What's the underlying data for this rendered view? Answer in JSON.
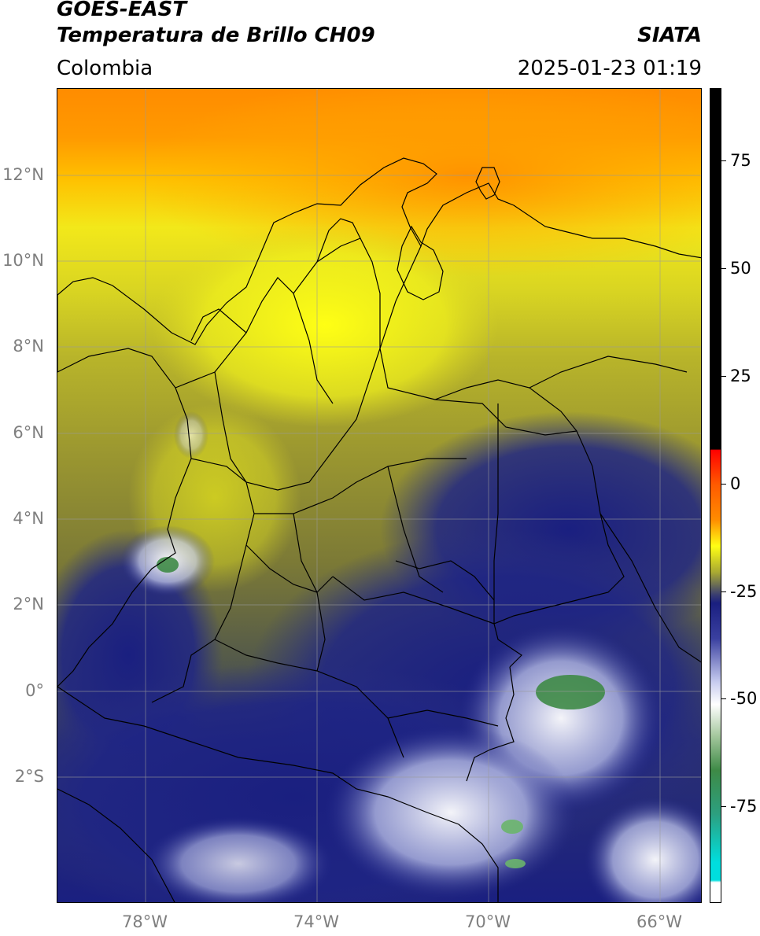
{
  "header": {
    "title_line1": "GOES-EAST",
    "title_line2": "Temperatura de Brillo CH09",
    "agency": "SIATA",
    "region": "Colombia",
    "timestamp": "2025-01-23 01:19"
  },
  "axes": {
    "lat_labels": [
      {
        "text": "12°N",
        "value": 12
      },
      {
        "text": "10°N",
        "value": 10
      },
      {
        "text": "8°N",
        "value": 8
      },
      {
        "text": "6°N",
        "value": 6
      },
      {
        "text": "4°N",
        "value": 4
      },
      {
        "text": "2°N",
        "value": 2
      },
      {
        "text": "0°",
        "value": 0
      },
      {
        "text": "2°S",
        "value": -2
      }
    ],
    "lon_labels": [
      {
        "text": "78°W",
        "value": -78
      },
      {
        "text": "74°W",
        "value": -74
      },
      {
        "text": "70°W",
        "value": -70
      },
      {
        "text": "66°W",
        "value": -66
      }
    ],
    "lon_range": [
      -80.0,
      -65.0
    ],
    "lat_range": [
      -5.05,
      14.0
    ],
    "grid": true
  },
  "colorbar": {
    "ticks": [
      {
        "text": "75",
        "value": 75
      },
      {
        "text": "50",
        "value": 50
      },
      {
        "text": "25",
        "value": 25
      },
      {
        "text": "0",
        "value": 0
      },
      {
        "text": "-25",
        "value": -25
      },
      {
        "text": "-50",
        "value": -50
      },
      {
        "text": "-75",
        "value": -75
      }
    ],
    "range": [
      -95,
      90
    ]
  },
  "colors": {
    "warm_orange": "#ff8c00",
    "yellow": "#ffff14",
    "olive": "#8a8a30",
    "dark_blue": "#1a1f80",
    "white_cloud": "#ffffff",
    "green_core": "#3e8a46",
    "colorbar_red": "#ff0000",
    "colorbar_black": "#000000",
    "colorbar_cyan": "#00dede"
  }
}
